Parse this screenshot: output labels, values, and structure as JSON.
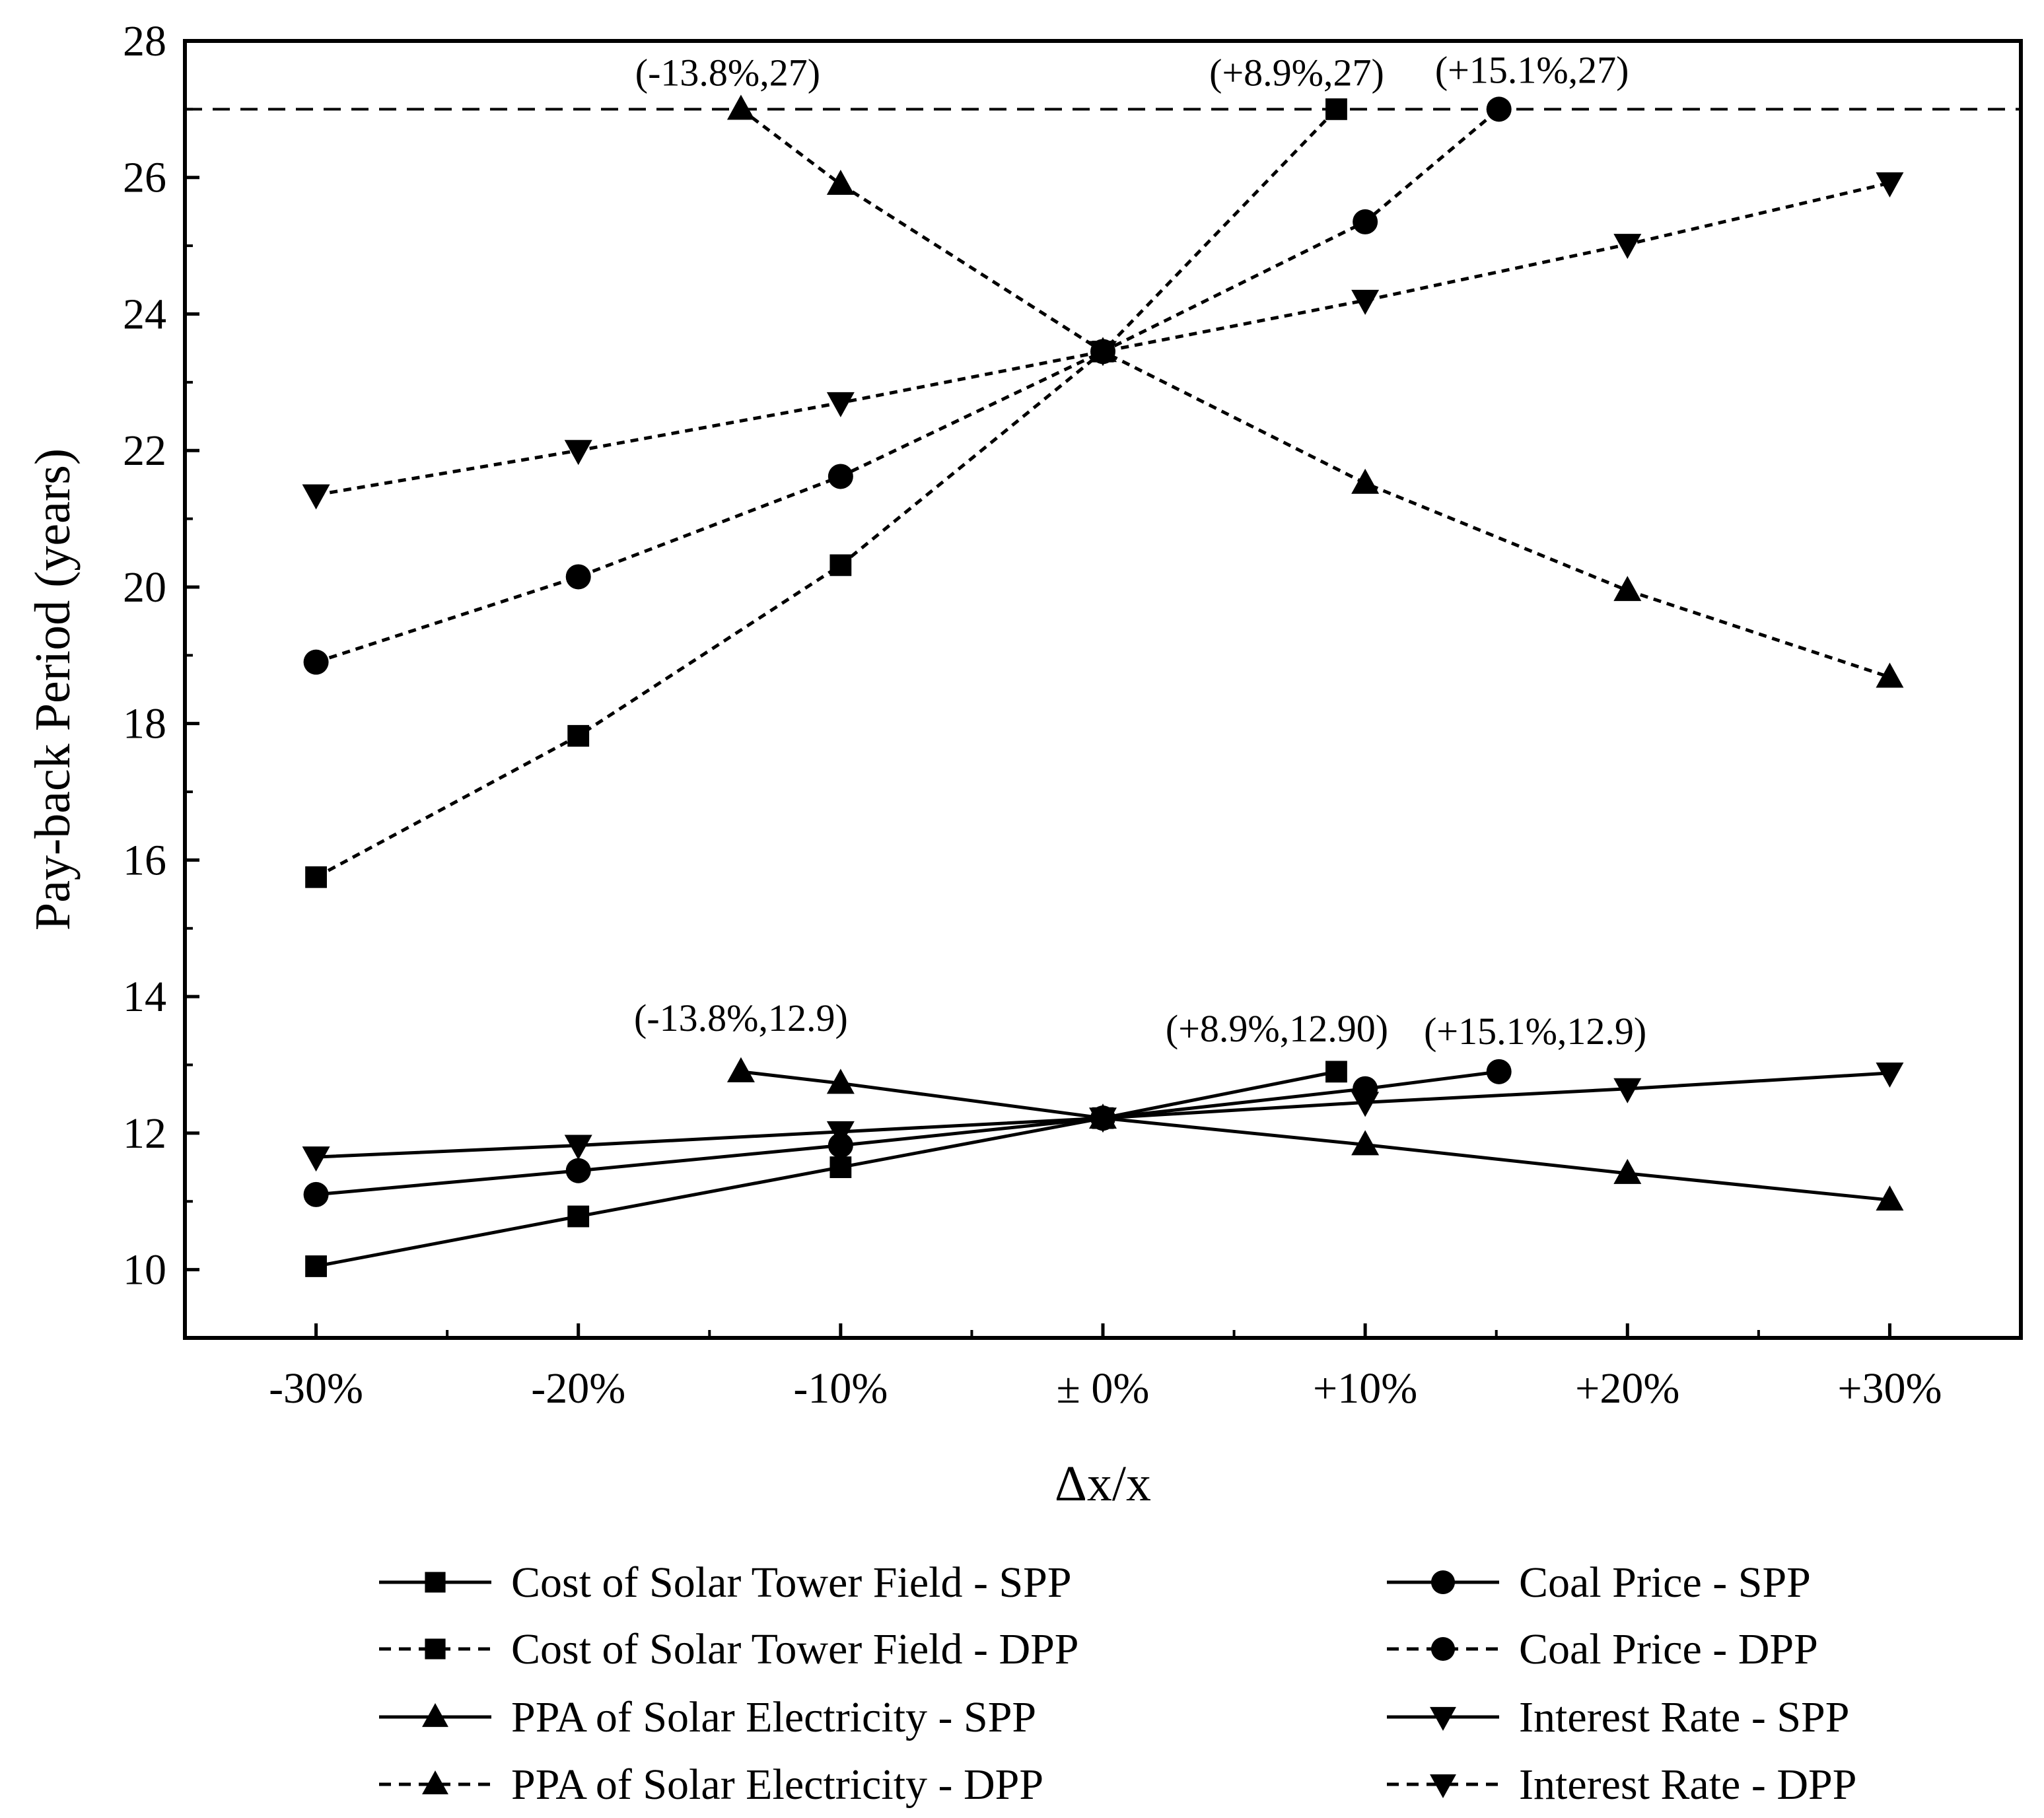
{
  "chart_data": {
    "type": "line",
    "xlabel": "Δx/x",
    "ylabel": "Pay-back Period (years)",
    "xlim": [
      -35,
      35
    ],
    "ylim": [
      9,
      28
    ],
    "x_ticks": [
      -30,
      -20,
      -10,
      0,
      10,
      20,
      30
    ],
    "x_tick_labels": [
      "-30%",
      "-20%",
      "-10%",
      "± 0%",
      "+10%",
      "+20%",
      "+30%"
    ],
    "y_ticks": [
      10,
      12,
      14,
      16,
      18,
      20,
      22,
      24,
      26,
      28
    ],
    "y_tick_labels": [
      "10",
      "12",
      "14",
      "16",
      "18",
      "20",
      "22",
      "24",
      "26",
      "28"
    ],
    "reference_line": {
      "y": 27,
      "style": "dashed"
    },
    "series": [
      {
        "name": "Cost of Solar Tower Field - SPP",
        "line": "solid",
        "marker": "square",
        "x": [
          -30,
          -20,
          -10,
          0,
          8.9
        ],
        "y": [
          10.05,
          10.78,
          11.5,
          12.22,
          12.9
        ]
      },
      {
        "name": "Cost of Solar Tower Field - DPP",
        "line": "dotted",
        "marker": "square",
        "x": [
          -30,
          -20,
          -10,
          0,
          8.9
        ],
        "y": [
          15.75,
          17.82,
          20.32,
          23.45,
          27
        ]
      },
      {
        "name": "PPA of Solar Electricity - SPP",
        "line": "solid",
        "marker": "triangle-up",
        "x": [
          -13.8,
          -10,
          0,
          10,
          20,
          30
        ],
        "y": [
          12.9,
          12.73,
          12.22,
          11.83,
          11.41,
          11.02
        ]
      },
      {
        "name": "PPA of Solar Electricity - DPP",
        "line": "dotted",
        "marker": "triangle-up",
        "x": [
          -13.8,
          -10,
          0,
          10,
          20,
          30
        ],
        "y": [
          27,
          25.9,
          23.45,
          21.52,
          19.95,
          18.68
        ]
      },
      {
        "name": "Coal Price - SPP",
        "line": "solid",
        "marker": "circle",
        "x": [
          -30,
          -20,
          -10,
          0,
          10,
          15.1
        ],
        "y": [
          11.1,
          11.45,
          11.82,
          12.22,
          12.65,
          12.9
        ]
      },
      {
        "name": "Coal Price - DPP",
        "line": "dotted",
        "marker": "circle",
        "x": [
          -30,
          -20,
          -10,
          0,
          10,
          15.1
        ],
        "y": [
          18.9,
          20.15,
          21.62,
          23.45,
          25.35,
          27
        ]
      },
      {
        "name": "Interest Rate - SPP",
        "line": "solid",
        "marker": "triangle-down",
        "x": [
          -30,
          -20,
          -10,
          0,
          10,
          20,
          30
        ],
        "y": [
          11.65,
          11.82,
          12.02,
          12.22,
          12.45,
          12.65,
          12.88
        ]
      },
      {
        "name": "Interest Rate - DPP",
        "line": "dotted",
        "marker": "triangle-down",
        "x": [
          -30,
          -20,
          -10,
          0,
          10,
          20,
          30
        ],
        "y": [
          21.35,
          22.0,
          22.7,
          23.45,
          24.2,
          25.02,
          25.92
        ]
      }
    ],
    "annotations": [
      {
        "text": "(-13.8%,27)",
        "x": -13.8,
        "y": 27
      },
      {
        "text": "(+8.9%,27)",
        "x": 8.9,
        "y": 27
      },
      {
        "text": "(+15.1%,27)",
        "x": 15.1,
        "y": 27
      },
      {
        "text": "(-13.8%,12.9)",
        "x": -13.8,
        "y": 12.9
      },
      {
        "text": "(+8.9%,12.90)",
        "x": 8.9,
        "y": 12.9
      },
      {
        "text": "(+15.1%,12.9)",
        "x": 15.1,
        "y": 12.9
      }
    ],
    "legend": {
      "placement": "bottom",
      "columns": 2,
      "order": [
        "Cost of Solar Tower Field - SPP",
        "Coal Price - SPP",
        "Cost of Solar Tower Field - DPP",
        "Coal Price - DPP",
        "PPA of Solar Electricity - SPP",
        "Interest Rate - SPP",
        "PPA of Solar Electricity - DPP",
        "Interest Rate - DPP"
      ]
    }
  }
}
